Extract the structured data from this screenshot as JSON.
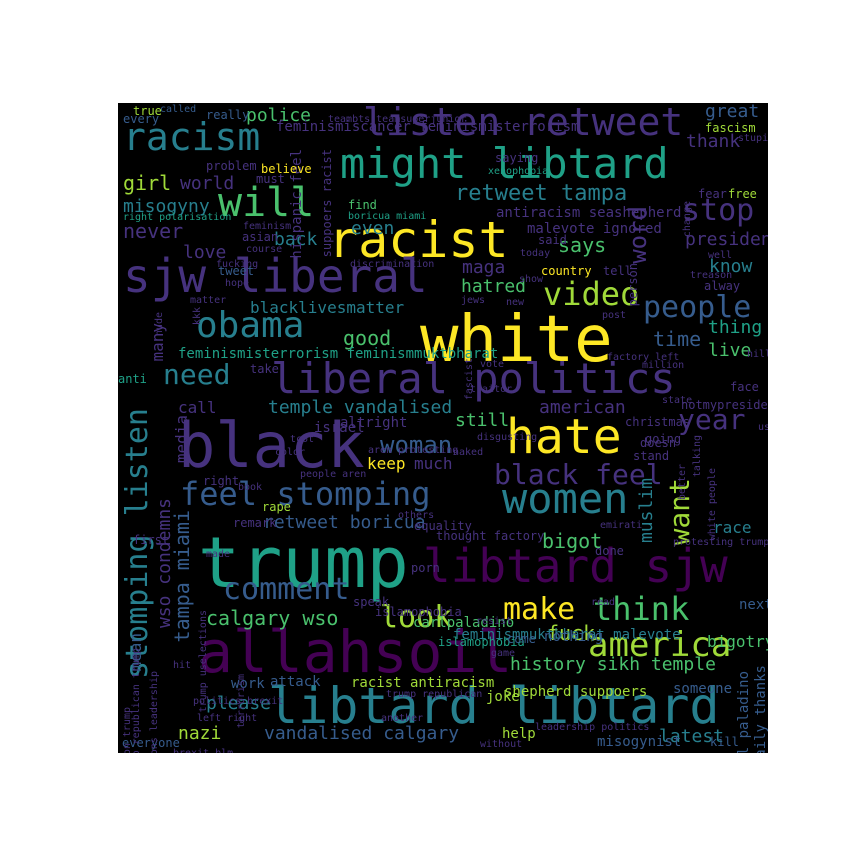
{
  "palette": {
    "purple": "#440154",
    "indigo": "#46327e",
    "blue": "#365c8d",
    "teal": "#277f8e",
    "green": "#1fa187",
    "lime": "#4ac16d",
    "yellowgreen": "#a0da39",
    "yellow": "#fde725"
  },
  "words": [
    {
      "t": "white",
      "c": "yellow"
    },
    {
      "t": "trump",
      "c": "green"
    },
    {
      "t": "black",
      "c": "indigo"
    },
    {
      "t": "allahsoil",
      "c": "purple"
    },
    {
      "t": "libtard libtard",
      "c": "teal"
    },
    {
      "t": "racist",
      "c": "yellow"
    },
    {
      "t": "sjw liberal",
      "c": "indigo"
    },
    {
      "t": "liberal politics",
      "c": "indigo"
    },
    {
      "t": "might libtard",
      "c": "green"
    },
    {
      "t": "libtard sjw",
      "c": "purple"
    },
    {
      "t": "hate",
      "c": "yellow"
    },
    {
      "t": "women",
      "c": "teal"
    },
    {
      "t": "listen retweet",
      "c": "indigo"
    },
    {
      "t": "racism",
      "c": "teal"
    },
    {
      "t": "obama",
      "c": "teal"
    },
    {
      "t": "stomping listen",
      "c": "teal"
    },
    {
      "t": "feel stomping",
      "c": "blue"
    },
    {
      "t": "will",
      "c": "lime"
    },
    {
      "t": "america",
      "c": "yellowgreen"
    },
    {
      "t": "comment",
      "c": "blue"
    },
    {
      "t": "video",
      "c": "yellowgreen"
    },
    {
      "t": "people",
      "c": "blue"
    },
    {
      "t": "black feel",
      "c": "indigo"
    },
    {
      "t": "think",
      "c": "lime"
    },
    {
      "t": "make",
      "c": "yellow"
    },
    {
      "t": "look",
      "c": "yellowgreen"
    },
    {
      "t": "need",
      "c": "teal"
    },
    {
      "t": "stop",
      "c": "indigo"
    },
    {
      "t": "word",
      "c": "indigo"
    },
    {
      "t": "year",
      "c": "indigo"
    },
    {
      "t": "woman",
      "c": "blue"
    },
    {
      "t": "want",
      "c": "yellowgreen"
    },
    {
      "t": "tampa miami",
      "c": "blue"
    },
    {
      "t": "retweet tampa",
      "c": "teal"
    },
    {
      "t": "calgary wso",
      "c": "lime"
    },
    {
      "t": "history sikh temple",
      "c": "lime"
    },
    {
      "t": "wso condemns",
      "c": "indigo"
    },
    {
      "t": "vandalised calgary",
      "c": "blue"
    },
    {
      "t": "temple vandalised",
      "c": "teal"
    },
    {
      "t": "retweet boricua",
      "c": "blue"
    },
    {
      "t": "time",
      "c": "blue"
    },
    {
      "t": "good",
      "c": "lime"
    },
    {
      "t": "girl",
      "c": "yellowgreen"
    },
    {
      "t": "never",
      "c": "indigo"
    },
    {
      "t": "says",
      "c": "lime"
    },
    {
      "t": "muslim",
      "c": "teal"
    },
    {
      "t": "bigot",
      "c": "lime"
    },
    {
      "t": "fuck",
      "c": "yellowgreen"
    },
    {
      "t": "president",
      "c": "indigo"
    },
    {
      "t": "great",
      "c": "blue"
    },
    {
      "t": "police",
      "c": "lime"
    },
    {
      "t": "world",
      "c": "indigo"
    },
    {
      "t": "thank",
      "c": "indigo"
    },
    {
      "t": "misogyny",
      "c": "teal"
    },
    {
      "t": "back",
      "c": "teal"
    },
    {
      "t": "even",
      "c": "teal"
    },
    {
      "t": "love",
      "c": "indigo"
    },
    {
      "t": "know",
      "c": "teal"
    },
    {
      "t": "maga",
      "c": "indigo"
    },
    {
      "t": "hatred",
      "c": "lime"
    },
    {
      "t": "thing",
      "c": "green"
    },
    {
      "t": "live",
      "c": "lime"
    },
    {
      "t": "media",
      "c": "indigo"
    },
    {
      "t": "many",
      "c": "indigo"
    },
    {
      "t": "call",
      "c": "indigo"
    },
    {
      "t": "still",
      "c": "lime"
    },
    {
      "t": "american",
      "c": "indigo"
    },
    {
      "t": "keep",
      "c": "yellow"
    },
    {
      "t": "much",
      "c": "indigo"
    },
    {
      "t": "race",
      "c": "teal"
    },
    {
      "t": "mean",
      "c": "blue"
    },
    {
      "t": "please",
      "c": "teal"
    },
    {
      "t": "nazi",
      "c": "yellowgreen"
    },
    {
      "t": "latest",
      "c": "teal"
    },
    {
      "t": "blacklivesmatter",
      "c": "teal"
    },
    {
      "t": "feminismiscancer feminismisterrorism",
      "c": "indigo"
    },
    {
      "t": "feminismisterrorism feminismmuktbharat",
      "c": "green"
    },
    {
      "t": "feminismmuktbharat malevote",
      "c": "teal"
    },
    {
      "t": "antiracism seashepherd",
      "c": "indigo"
    },
    {
      "t": "malevote ignored",
      "c": "indigo"
    },
    {
      "t": "hispanic feel",
      "c": "indigo"
    },
    {
      "t": "suppoers racist",
      "c": "indigo"
    },
    {
      "t": "carl paladino",
      "c": "blue"
    },
    {
      "t": "daily thanks",
      "c": "blue"
    },
    {
      "t": "shepherd suppoers",
      "c": "yellowgreen"
    },
    {
      "t": "racist antiracism",
      "c": "yellowgreen"
    },
    {
      "t": "carlpaladino",
      "c": "lime"
    },
    {
      "t": "islamophobia",
      "c": "green"
    },
    {
      "t": "bigotry",
      "c": "lime"
    },
    {
      "t": "next",
      "c": "blue"
    },
    {
      "t": "joke",
      "c": "yellowgreen"
    },
    {
      "t": "someone",
      "c": "blue"
    },
    {
      "t": "help",
      "c": "yellowgreen"
    },
    {
      "t": "misogynist",
      "c": "blue"
    },
    {
      "t": "kill",
      "c": "blue"
    },
    {
      "t": "nothing",
      "c": "blue"
    },
    {
      "t": "come",
      "c": "blue"
    },
    {
      "t": "work",
      "c": "blue"
    },
    {
      "t": "attack",
      "c": "blue"
    },
    {
      "t": "everyone",
      "c": "blue"
    },
    {
      "t": "true",
      "c": "yellowgreen"
    },
    {
      "t": "called",
      "c": "blue"
    },
    {
      "t": "every",
      "c": "blue"
    },
    {
      "t": "really",
      "c": "blue"
    },
    {
      "t": "problem",
      "c": "indigo"
    },
    {
      "t": "believe",
      "c": "yellow"
    },
    {
      "t": "must",
      "c": "indigo"
    },
    {
      "t": "saying",
      "c": "indigo"
    },
    {
      "t": "xenophobia",
      "c": "green"
    },
    {
      "t": "teambts teamsuperjunior",
      "c": "indigo"
    },
    {
      "t": "discrimination",
      "c": "indigo"
    },
    {
      "t": "fascism",
      "c": "yellowgreen"
    },
    {
      "t": "stupid",
      "c": "indigo"
    },
    {
      "t": "free",
      "c": "yellowgreen"
    },
    {
      "t": "fear",
      "c": "indigo"
    },
    {
      "t": "change",
      "c": "indigo"
    },
    {
      "t": "boricua miami",
      "c": "green"
    },
    {
      "t": "right polarisation",
      "c": "green"
    },
    {
      "t": "feminism",
      "c": "indigo"
    },
    {
      "t": "asian",
      "c": "indigo"
    },
    {
      "t": "course",
      "c": "indigo"
    },
    {
      "t": "fucking",
      "c": "indigo"
    },
    {
      "t": "find",
      "c": "lime"
    },
    {
      "t": "said",
      "c": "indigo"
    },
    {
      "t": "tell",
      "c": "indigo"
    },
    {
      "t": "today",
      "c": "indigo"
    },
    {
      "t": "country",
      "c": "yellow"
    },
    {
      "t": "person",
      "c": "indigo"
    },
    {
      "t": "treason",
      "c": "indigo"
    },
    {
      "t": "alway",
      "c": "indigo"
    },
    {
      "t": "well",
      "c": "indigo"
    },
    {
      "t": "tweet",
      "c": "blue"
    },
    {
      "t": "hope",
      "c": "indigo"
    },
    {
      "t": "show",
      "c": "indigo"
    },
    {
      "t": "matter",
      "c": "indigo"
    },
    {
      "t": "nude",
      "c": "indigo"
    },
    {
      "t": "kkk",
      "c": "indigo"
    },
    {
      "t": "jews",
      "c": "indigo"
    },
    {
      "t": "new",
      "c": "indigo"
    },
    {
      "t": "post",
      "c": "indigo"
    },
    {
      "t": "factory left",
      "c": "indigo"
    },
    {
      "t": "million",
      "c": "indigo"
    },
    {
      "t": "hillary",
      "c": "indigo"
    },
    {
      "t": "fascist",
      "c": "indigo"
    },
    {
      "t": "vote",
      "c": "indigo"
    },
    {
      "t": "traitor",
      "c": "indigo"
    },
    {
      "t": "take",
      "c": "indigo"
    },
    {
      "t": "state",
      "c": "indigo"
    },
    {
      "t": "face",
      "c": "indigo"
    },
    {
      "t": "notmypresident",
      "c": "indigo"
    },
    {
      "t": "anti",
      "c": "green"
    },
    {
      "t": "tcot",
      "c": "indigo"
    },
    {
      "t": "color",
      "c": "indigo"
    },
    {
      "t": "aren protesting",
      "c": "indigo"
    },
    {
      "t": "christmas",
      "c": "indigo"
    },
    {
      "t": "israel",
      "c": "indigo"
    },
    {
      "t": "altright",
      "c": "indigo"
    },
    {
      "t": "leadership republican trump",
      "c": "indigo"
    },
    {
      "t": "usa",
      "c": "indigo"
    },
    {
      "t": "naked",
      "c": "indigo"
    },
    {
      "t": "disgusting",
      "c": "indigo"
    },
    {
      "t": "going",
      "c": "indigo"
    },
    {
      "t": "talking",
      "c": "indigo"
    },
    {
      "t": "stand",
      "c": "indigo"
    },
    {
      "t": "doesn",
      "c": "indigo"
    },
    {
      "t": "people aren",
      "c": "indigo"
    },
    {
      "t": "right",
      "c": "indigo"
    },
    {
      "t": "white people",
      "c": "indigo"
    },
    {
      "t": "better",
      "c": "indigo"
    },
    {
      "t": "rape",
      "c": "yellowgreen"
    },
    {
      "t": "book",
      "c": "indigo"
    },
    {
      "t": "others",
      "c": "indigo"
    },
    {
      "t": "equality",
      "c": "indigo"
    },
    {
      "t": "remark",
      "c": "indigo"
    },
    {
      "t": "thought factory",
      "c": "indigo"
    },
    {
      "t": "emirati",
      "c": "indigo"
    },
    {
      "t": "first",
      "c": "indigo"
    },
    {
      "t": "made",
      "c": "indigo"
    },
    {
      "t": "protesting trump",
      "c": "indigo"
    },
    {
      "t": "trump uselections",
      "c": "indigo"
    },
    {
      "t": "uselections leadership",
      "c": "indigo"
    },
    {
      "t": "done",
      "c": "indigo"
    },
    {
      "t": "porn",
      "c": "indigo"
    },
    {
      "t": "read",
      "c": "indigo"
    },
    {
      "t": "speak",
      "c": "indigo"
    },
    {
      "t": "resist",
      "c": "indigo"
    },
    {
      "t": "islamophobia",
      "c": "indigo"
    },
    {
      "t": "polarisation trump",
      "c": "indigo"
    },
    {
      "t": "politics brexit",
      "c": "indigo"
    },
    {
      "t": "left right",
      "c": "indigo"
    },
    {
      "t": "brexit blm",
      "c": "indigo"
    },
    {
      "t": "trump republican",
      "c": "indigo"
    },
    {
      "t": "another",
      "c": "indigo"
    },
    {
      "t": "game",
      "c": "indigo"
    },
    {
      "t": "without",
      "c": "indigo"
    },
    {
      "t": "leadership politics",
      "c": "indigo"
    },
    {
      "t": "terrorism",
      "c": "indigo"
    },
    {
      "t": "hit",
      "c": "indigo"
    }
  ]
}
